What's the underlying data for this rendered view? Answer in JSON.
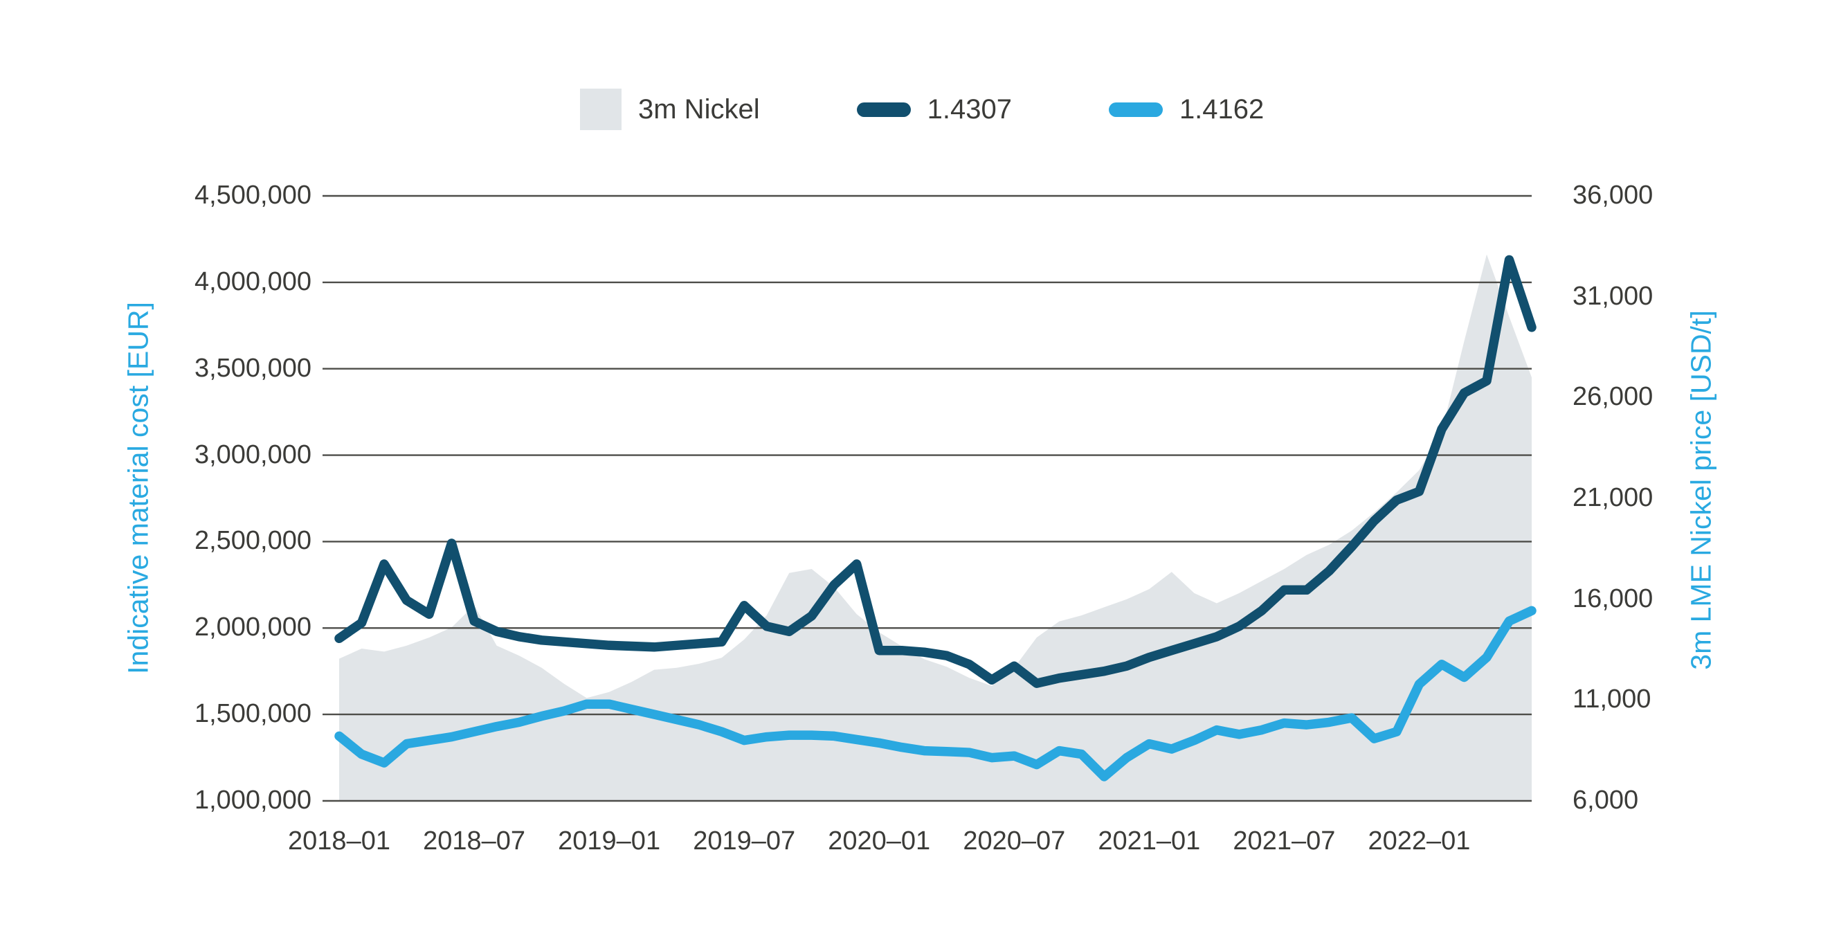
{
  "colors": {
    "area": "#e1e5e8",
    "line_dark": "#114f6e",
    "line_light": "#2aa8e0",
    "grid": "#4d4d49",
    "tick_text": "#3b3b38",
    "axis_title": "#29a9e1",
    "background": "#ffffff"
  },
  "legend": {
    "items": [
      {
        "label": "3m Nickel",
        "swatch": "square",
        "color": "#e1e5e8"
      },
      {
        "label": "1.4307",
        "swatch": "pill",
        "color": "#114f6e"
      },
      {
        "label": "1.4162",
        "swatch": "pill",
        "color": "#2aa8e0"
      }
    ]
  },
  "left_axis": {
    "title": "Indicative material cost [EUR]",
    "ticks": [
      {
        "label": "4,500,000",
        "value": 4500000
      },
      {
        "label": "4,000,000",
        "value": 4000000
      },
      {
        "label": "3,500,000",
        "value": 3500000
      },
      {
        "label": "3,000,000",
        "value": 3000000
      },
      {
        "label": "2,500,000",
        "value": 2500000
      },
      {
        "label": "2,000,000",
        "value": 2000000
      },
      {
        "label": "1,500,000",
        "value": 1500000
      },
      {
        "label": "1,000,000",
        "value": 1000000
      }
    ]
  },
  "right_axis": {
    "title": "3m LME Nickel price [USD/t]",
    "ticks": [
      {
        "label": "36,000",
        "value": 36000
      },
      {
        "label": "31,000",
        "value": 31000
      },
      {
        "label": "26,000",
        "value": 26000
      },
      {
        "label": "21,000",
        "value": 21000
      },
      {
        "label": "16,000",
        "value": 16000
      },
      {
        "label": "11,000",
        "value": 11000
      },
      {
        "label": "6,000",
        "value": 6000
      }
    ]
  },
  "x_axis": {
    "tick_indices": [
      0,
      6,
      12,
      18,
      24,
      30,
      36,
      42,
      48
    ]
  },
  "chart_data": {
    "type": "combo",
    "grid": true,
    "legend_position": "top",
    "left_ylim": [
      1000000,
      4500000
    ],
    "right_ylim": [
      6000,
      36000
    ],
    "x": [
      "2018–01",
      "2018–02",
      "2018–03",
      "2018–04",
      "2018–05",
      "2018–06",
      "2018–07",
      "2018–08",
      "2018–09",
      "2018–10",
      "2018–11",
      "2018–12",
      "2019–01",
      "2019–02",
      "2019–03",
      "2019–04",
      "2019–05",
      "2019–06",
      "2019–07",
      "2019–08",
      "2019–09",
      "2019–10",
      "2019–11",
      "2019–12",
      "2020–01",
      "2020–02",
      "2020–03",
      "2020–04",
      "2020–05",
      "2020–06",
      "2020–07",
      "2020–08",
      "2020–09",
      "2020–10",
      "2020–11",
      "2020–12",
      "2021–01",
      "2021–02",
      "2021–03",
      "2021–04",
      "2021–05",
      "2021–06",
      "2021–07",
      "2021–08",
      "2021–09",
      "2021–10",
      "2021–11",
      "2021–12",
      "2022–01",
      "2022–02",
      "2022–03",
      "2022–04",
      "2022–05",
      "2022–06"
    ],
    "series": [
      {
        "name": "3m Nickel",
        "type": "area",
        "axis": "right",
        "unit": "USD/t",
        "color": "#e1e5e8",
        "values": [
          13050,
          13550,
          13400,
          13700,
          14100,
          14600,
          15700,
          13700,
          13200,
          12600,
          11800,
          11100,
          11400,
          11900,
          12500,
          12600,
          12800,
          13100,
          14000,
          15200,
          17300,
          17500,
          16600,
          15260,
          14360,
          13670,
          13030,
          12650,
          12100,
          11700,
          12600,
          14100,
          14900,
          15200,
          15600,
          16000,
          16500,
          17350,
          16300,
          15800,
          16300,
          16900,
          17500,
          18200,
          18700,
          19400,
          20300,
          21300,
          22400,
          24300,
          28800,
          33100,
          30000,
          27000
        ]
      },
      {
        "name": "1.4307",
        "type": "line",
        "axis": "left",
        "unit": "EUR",
        "color": "#114f6e",
        "values": [
          1940000,
          2030000,
          2370000,
          2160000,
          2080000,
          2490000,
          2040000,
          1980000,
          1950000,
          1930000,
          1920000,
          1910000,
          1900000,
          1895000,
          1890000,
          1900000,
          1910000,
          1920000,
          2130000,
          2010000,
          1980000,
          2070000,
          2250000,
          2370000,
          1870000,
          1870000,
          1860000,
          1840000,
          1790000,
          1700000,
          1780000,
          1680000,
          1710000,
          1730000,
          1750000,
          1780000,
          1830000,
          1870000,
          1910000,
          1950000,
          2010000,
          2100000,
          2220000,
          2220000,
          2330000,
          2470000,
          2620000,
          2740000,
          2790000,
          3150000,
          3360000,
          3430000,
          4130000,
          3740000
        ]
      },
      {
        "name": "1.4162",
        "type": "line",
        "axis": "left",
        "unit": "EUR",
        "color": "#2aa8e0",
        "values": [
          1375000,
          1270000,
          1220000,
          1330000,
          1350000,
          1370000,
          1400000,
          1430000,
          1455000,
          1490000,
          1520000,
          1560000,
          1560000,
          1530000,
          1500000,
          1470000,
          1440000,
          1400000,
          1350000,
          1370000,
          1380000,
          1380000,
          1375000,
          1355000,
          1335000,
          1310000,
          1290000,
          1285000,
          1280000,
          1250000,
          1260000,
          1210000,
          1290000,
          1270000,
          1140000,
          1250000,
          1330000,
          1300000,
          1350000,
          1410000,
          1385000,
          1410000,
          1450000,
          1440000,
          1455000,
          1480000,
          1360000,
          1400000,
          1675000,
          1790000,
          1715000,
          1830000,
          2040000,
          2100000
        ]
      }
    ]
  }
}
